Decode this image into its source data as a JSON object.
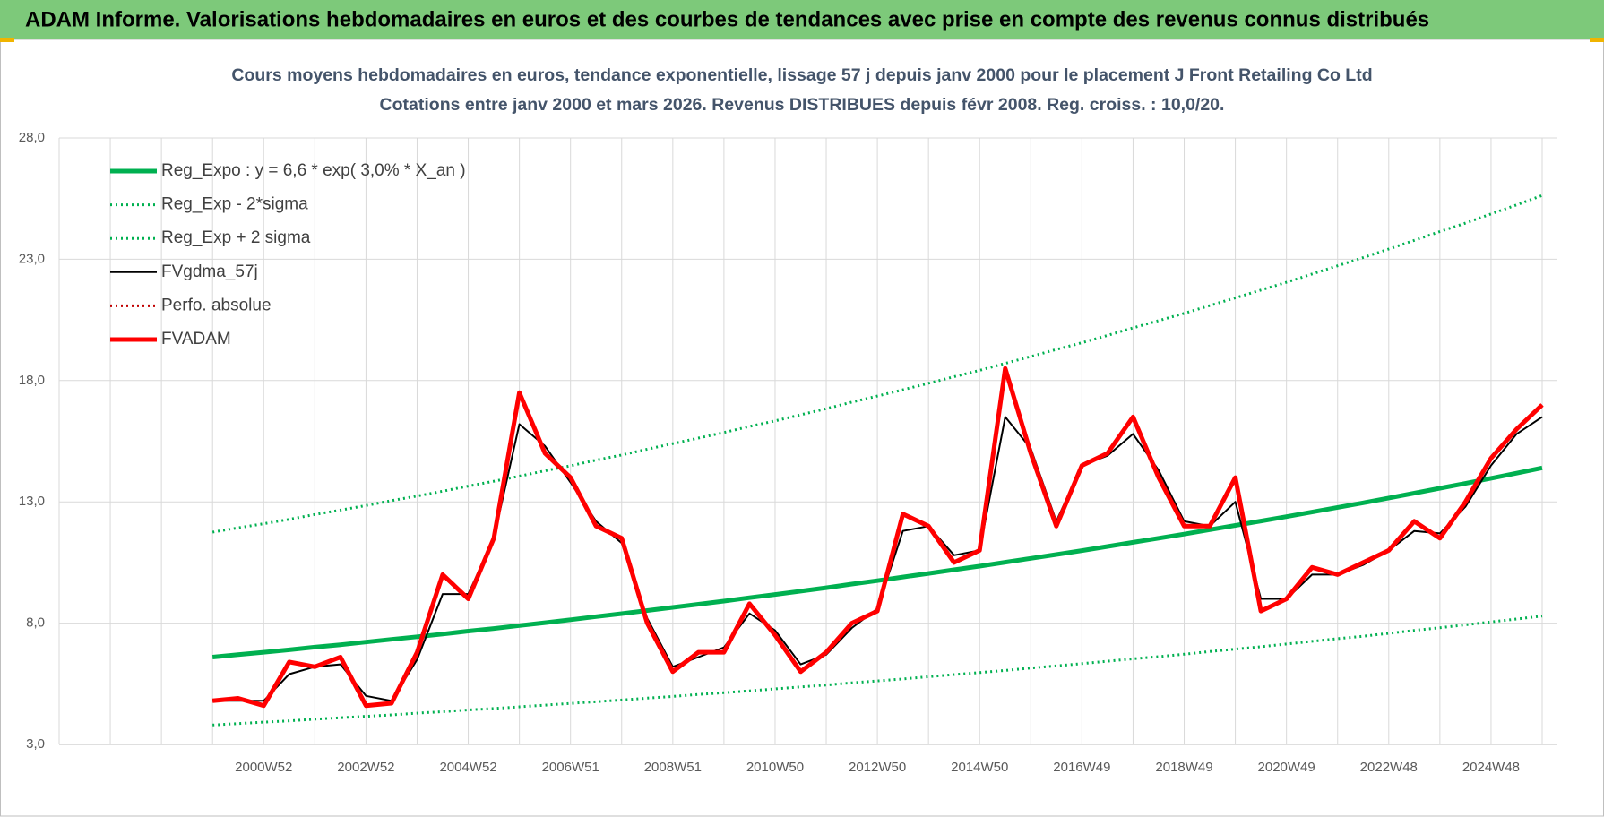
{
  "header": {
    "title": "ADAM Informe. Valorisations hebdomadaires en euros et des courbes de tendances avec prise en compte des revenus connus distribués"
  },
  "chart_data": {
    "type": "line",
    "title": "Cours moyens hebdomadaires en euros, tendance exponentielle, lissage 57 j depuis janv 2000 pour le placement J Front Retailing Co Ltd",
    "subtitle": "Cotations entre janv 2000 et mars 2026. Revenus DISTRIBUES depuis févr 2008. Reg. croiss. : 10,0/20.",
    "categories": [
      null,
      null,
      null,
      null,
      null,
      null,
      null,
      null,
      "2000W52",
      null,
      null,
      null,
      "2002W52",
      null,
      null,
      null,
      "2004W52",
      null,
      null,
      null,
      "2006W51",
      null,
      null,
      null,
      "2008W51",
      null,
      null,
      null,
      "2010W50",
      null,
      null,
      null,
      "2012W50",
      null,
      null,
      null,
      "2014W50",
      null,
      null,
      null,
      "2016W49",
      null,
      null,
      null,
      "2018W49",
      null,
      null,
      null,
      "2020W49",
      null,
      null,
      null,
      "2022W48",
      null,
      null,
      null,
      "2024W48",
      null,
      null
    ],
    "ylim": [
      3,
      28
    ],
    "yticks": [
      {
        "value": 3,
        "label": "3,0"
      },
      {
        "value": 8,
        "label": "8,0"
      },
      {
        "value": 13,
        "label": "13,0"
      },
      {
        "value": 18,
        "label": "18,0"
      },
      {
        "value": 23,
        "label": "23,0"
      },
      {
        "value": 28,
        "label": "28,0"
      }
    ],
    "grid": true,
    "legend": "top-left",
    "series": [
      {
        "name": "Reg_Expo : y = 6,6 * exp( 3,0% *  X_an )",
        "color": "#00b050",
        "style": "thick",
        "values": [
          null,
          null,
          null,
          null,
          null,
          null,
          6.6,
          6.7,
          6.8,
          6.9,
          7.01,
          7.11,
          7.22,
          7.33,
          7.44,
          7.55,
          7.67,
          7.78,
          7.9,
          8.02,
          8.14,
          8.27,
          8.39,
          8.52,
          8.65,
          8.78,
          8.91,
          9.05,
          9.18,
          9.32,
          9.46,
          9.61,
          9.75,
          9.9,
          10.05,
          10.2,
          10.35,
          10.51,
          10.67,
          10.83,
          10.99,
          11.16,
          11.33,
          11.5,
          11.67,
          11.85,
          12.03,
          12.21,
          12.39,
          12.58,
          12.77,
          12.96,
          13.16,
          13.36,
          13.56,
          13.76,
          13.97,
          14.18,
          14.4
        ]
      },
      {
        "name": "Reg_Exp - 2*sigma",
        "color": "#00b050",
        "style": "dotted",
        "values": [
          null,
          null,
          null,
          null,
          null,
          null,
          3.8,
          3.86,
          3.92,
          3.97,
          4.04,
          4.1,
          4.16,
          4.22,
          4.29,
          4.35,
          4.42,
          4.48,
          4.55,
          4.62,
          4.69,
          4.76,
          4.83,
          4.91,
          4.98,
          5.06,
          5.13,
          5.21,
          5.29,
          5.37,
          5.45,
          5.54,
          5.62,
          5.7,
          5.79,
          5.88,
          5.96,
          6.05,
          6.15,
          6.24,
          6.33,
          6.43,
          6.53,
          6.62,
          6.72,
          6.83,
          6.93,
          7.03,
          7.14,
          7.25,
          7.36,
          7.46,
          7.58,
          7.7,
          7.81,
          7.93,
          8.05,
          8.17,
          8.29
        ]
      },
      {
        "name": "Reg_Exp + 2 sigma",
        "color": "#00b050",
        "style": "dotted",
        "values": [
          null,
          null,
          null,
          null,
          null,
          null,
          11.75,
          11.93,
          12.1,
          12.28,
          12.48,
          12.66,
          12.85,
          13.05,
          13.24,
          13.44,
          13.65,
          13.85,
          14.06,
          14.28,
          14.49,
          14.72,
          14.93,
          15.17,
          15.4,
          15.63,
          15.86,
          16.11,
          16.34,
          16.59,
          16.84,
          17.11,
          17.36,
          17.62,
          17.89,
          18.16,
          18.42,
          18.71,
          18.99,
          19.28,
          19.56,
          19.86,
          20.17,
          20.47,
          20.77,
          21.09,
          21.41,
          21.73,
          22.05,
          22.39,
          22.73,
          23.07,
          23.42,
          23.78,
          24.14,
          24.49,
          24.87,
          25.24,
          25.63
        ]
      },
      {
        "name": "FVgdma_57j",
        "color": "#000000",
        "style": "solid",
        "values": [
          null,
          null,
          null,
          null,
          null,
          null,
          4.8,
          4.8,
          4.8,
          5.9,
          6.2,
          6.3,
          5.0,
          4.8,
          6.5,
          9.2,
          9.2,
          11.5,
          16.2,
          15.3,
          13.8,
          12.2,
          11.3,
          8.2,
          6.2,
          6.6,
          7.0,
          8.4,
          7.7,
          6.3,
          6.7,
          7.8,
          8.6,
          11.8,
          12.0,
          10.8,
          11.0,
          16.5,
          15.2,
          12.2,
          14.5,
          14.9,
          15.8,
          14.3,
          12.2,
          12.0,
          13.0,
          9.0,
          9.0,
          10.0,
          10.0,
          10.4,
          11.0,
          11.8,
          11.7,
          12.8,
          14.5,
          15.8,
          16.5
        ]
      },
      {
        "name": "Perfo. absolue",
        "color": "#c00000",
        "style": "dotted",
        "values": [
          null,
          null,
          null,
          null,
          null,
          null,
          4.8,
          4.9,
          4.6,
          6.4,
          6.2,
          6.6,
          4.6,
          4.7,
          6.8,
          10.0,
          9.0,
          11.5,
          17.5,
          15.0,
          14.0,
          12.0,
          11.5,
          8.0,
          6.0,
          6.8,
          6.8,
          8.8,
          7.5,
          6.0,
          6.8,
          8.0,
          8.5,
          12.5,
          12.0,
          10.5,
          11.0,
          18.5,
          15.0,
          12.0,
          14.5,
          15.0,
          16.5,
          14.0,
          12.0,
          12.0,
          14.0,
          8.5,
          9.0,
          10.3,
          10.0,
          10.5,
          11.0,
          12.2,
          11.5,
          13.0,
          14.8,
          16.0,
          17.0
        ]
      },
      {
        "name": "FVADAM",
        "color": "#ff0000",
        "style": "thick",
        "values": [
          null,
          null,
          null,
          null,
          null,
          null,
          4.8,
          4.9,
          4.6,
          6.4,
          6.2,
          6.6,
          4.6,
          4.7,
          6.8,
          10.0,
          9.0,
          11.5,
          17.5,
          15.0,
          14.0,
          12.0,
          11.5,
          8.0,
          6.0,
          6.8,
          6.8,
          8.8,
          7.5,
          6.0,
          6.8,
          8.0,
          8.5,
          12.5,
          12.0,
          10.5,
          11.0,
          18.5,
          15.0,
          12.0,
          14.5,
          15.0,
          16.5,
          14.0,
          12.0,
          12.0,
          14.0,
          8.5,
          9.0,
          10.3,
          10.0,
          10.5,
          11.0,
          12.2,
          11.5,
          13.0,
          14.8,
          16.0,
          17.0
        ]
      }
    ]
  }
}
